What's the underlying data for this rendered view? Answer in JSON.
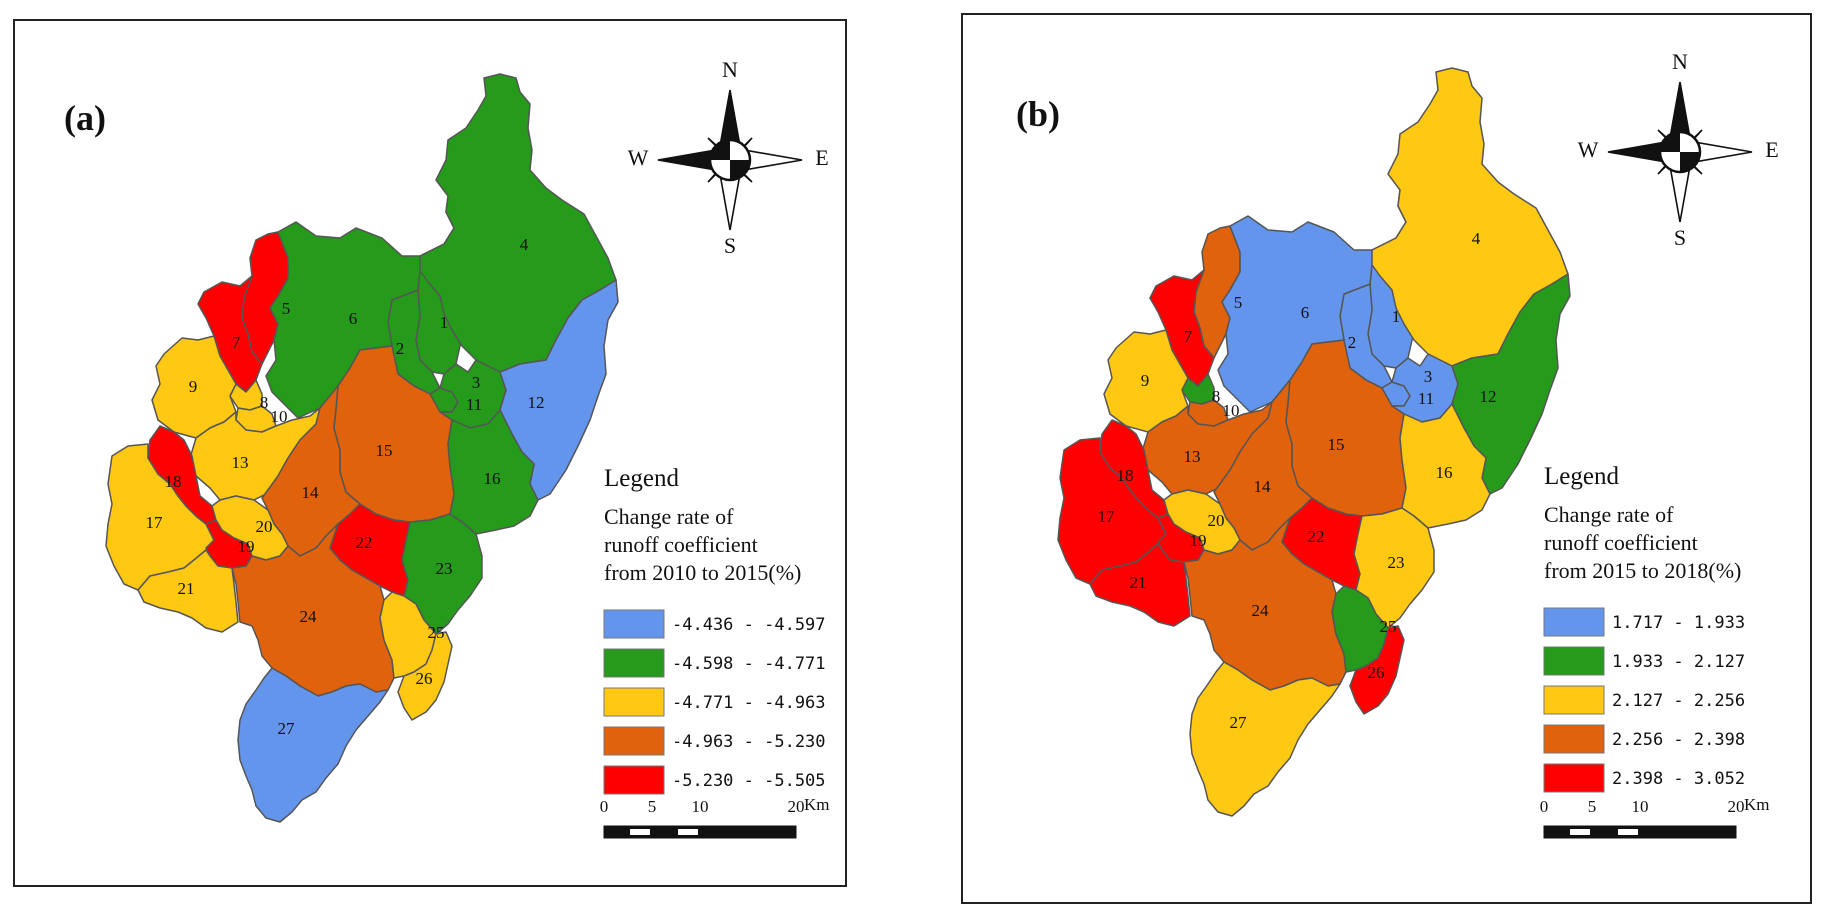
{
  "colors": {
    "blue": "#6495ED",
    "green": "#259A1B",
    "yellow": "#FFC813",
    "orange": "#E0620C",
    "red": "#FF0000"
  },
  "zone_ids": [
    "1",
    "2",
    "3",
    "4",
    "5",
    "6",
    "7",
    "8",
    "9",
    "10",
    "11",
    "12",
    "13",
    "14",
    "15",
    "16",
    "17",
    "18",
    "19",
    "20",
    "21",
    "22",
    "23",
    "24",
    "25",
    "26",
    "27"
  ],
  "panels": [
    {
      "tag": "(a)",
      "compass": {
        "n": "N",
        "s": "S",
        "w": "W",
        "e": "E"
      },
      "legend": {
        "title": "Legend",
        "subtitle_lines": [
          "Change rate of",
          "runoff coefficient",
          "from 2010 to 2015(%)"
        ],
        "classes": [
          {
            "color": "blue",
            "range": "-4.436 - -4.597"
          },
          {
            "color": "green",
            "range": "-4.598 - -4.771"
          },
          {
            "color": "yellow",
            "range": "-4.771 - -4.963"
          },
          {
            "color": "orange",
            "range": "-4.963 - -5.230"
          },
          {
            "color": "red",
            "range": "-5.230 - -5.505"
          }
        ]
      },
      "scale": {
        "ticks": [
          "0",
          "5",
          "10",
          "20"
        ],
        "unit": "Km"
      },
      "zone_classes": {
        "1": "green",
        "2": "green",
        "3": "green",
        "4": "green",
        "5": "red",
        "6": "green",
        "7": "red",
        "8": "yellow",
        "9": "yellow",
        "10": "yellow",
        "11": "green",
        "12": "blue",
        "13": "yellow",
        "14": "orange",
        "15": "orange",
        "16": "green",
        "17": "yellow",
        "18": "red",
        "19": "red",
        "20": "yellow",
        "21": "yellow",
        "22": "red",
        "23": "green",
        "24": "orange",
        "25": "yellow",
        "26": "yellow",
        "27": "blue"
      }
    },
    {
      "tag": "(b)",
      "compass": {
        "n": "N",
        "s": "S",
        "w": "W",
        "e": "E"
      },
      "legend": {
        "title": "Legend",
        "subtitle_lines": [
          "Change rate of",
          " runoff coefficient",
          "from 2015 to 2018(%)"
        ],
        "classes": [
          {
            "color": "blue",
            "range": "1.717 - 1.933"
          },
          {
            "color": "green",
            "range": "1.933 - 2.127"
          },
          {
            "color": "yellow",
            "range": "2.127 - 2.256"
          },
          {
            "color": "orange",
            "range": "2.256 - 2.398"
          },
          {
            "color": "red",
            "range": "2.398 - 3.052"
          }
        ]
      },
      "scale": {
        "ticks": [
          "0",
          "5",
          "10",
          "20"
        ],
        "unit": "Km"
      },
      "zone_classes": {
        "1": "blue",
        "2": "blue",
        "3": "blue",
        "4": "yellow",
        "5": "orange",
        "6": "blue",
        "7": "red",
        "8": "green",
        "9": "yellow",
        "10": "orange",
        "11": "blue",
        "12": "green",
        "13": "orange",
        "14": "orange",
        "15": "orange",
        "16": "yellow",
        "17": "red",
        "18": "red",
        "19": "red",
        "20": "yellow",
        "21": "red",
        "22": "red",
        "23": "yellow",
        "24": "orange",
        "25": "green",
        "26": "red",
        "27": "yellow"
      }
    }
  ]
}
